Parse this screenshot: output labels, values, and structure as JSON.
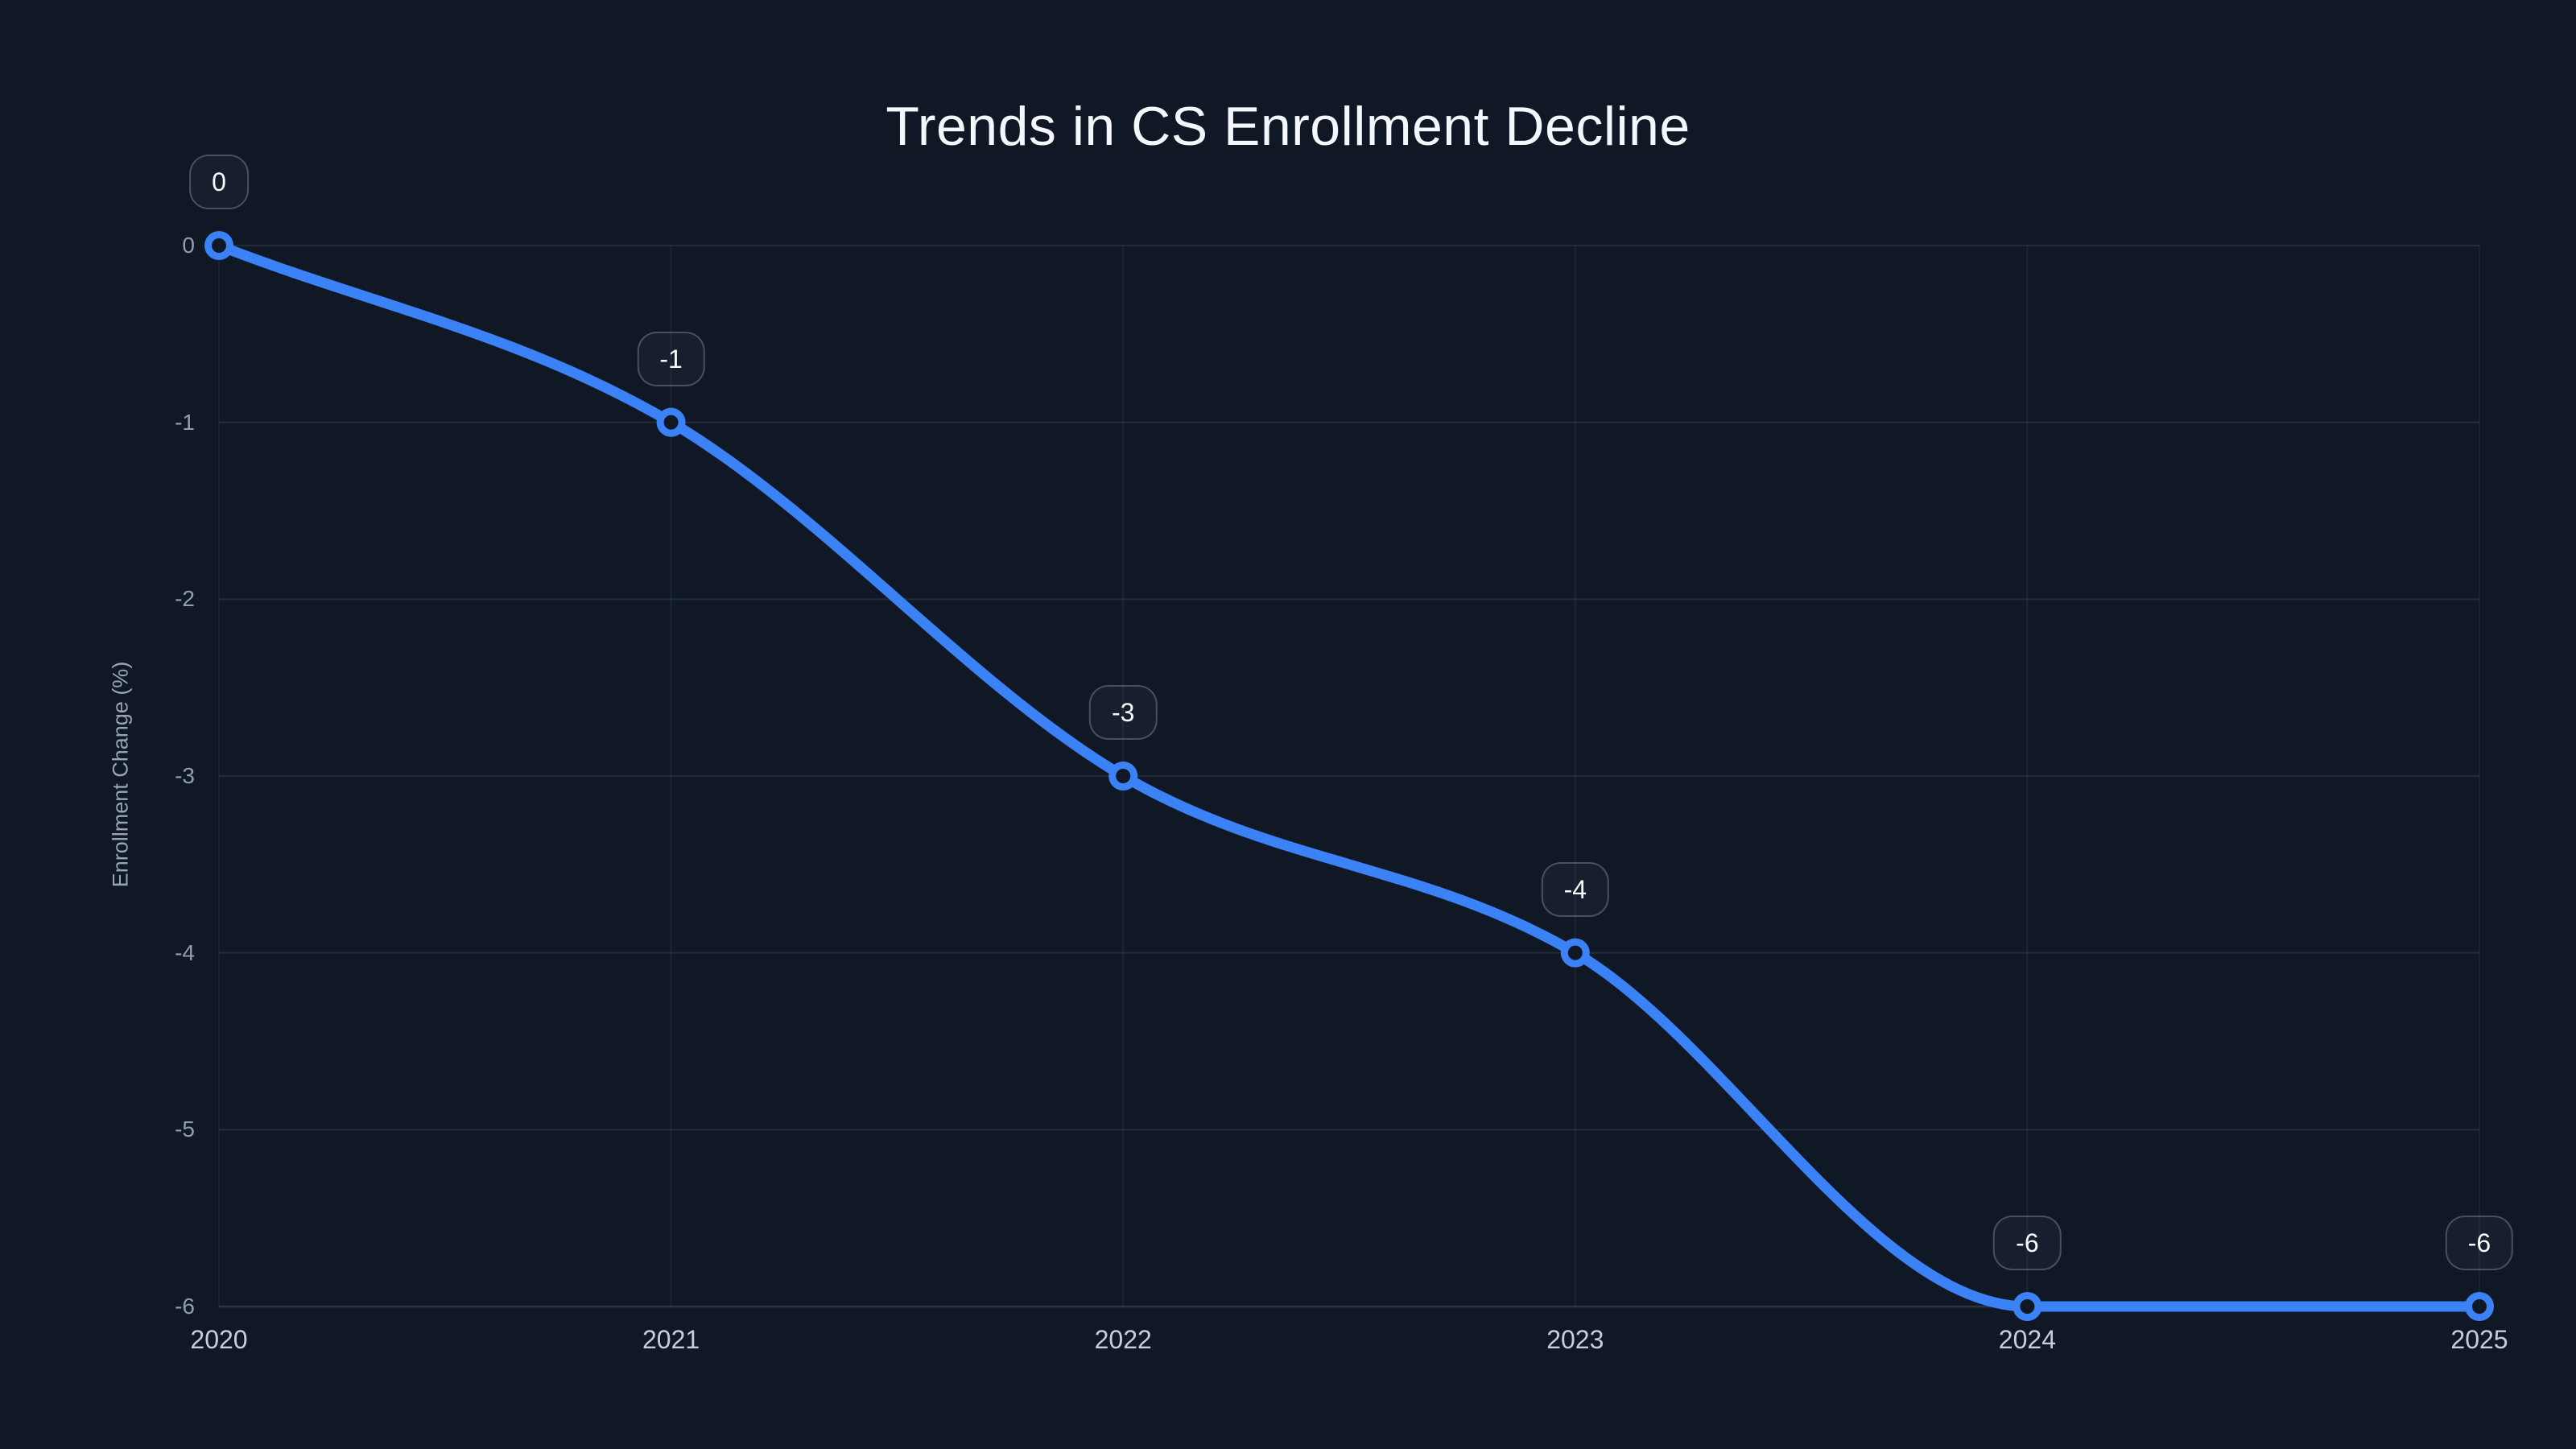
{
  "chart_data": {
    "type": "line",
    "title": "Trends in CS Enrollment Decline",
    "xlabel": "",
    "ylabel": "Enrollment Change (%)",
    "categories": [
      "2020",
      "2021",
      "2022",
      "2023",
      "2024",
      "2025"
    ],
    "series": [
      {
        "name": "Enrollment Change (%)",
        "values": [
          0,
          -1,
          -3,
          -4,
          -6,
          -6
        ]
      }
    ],
    "point_labels": [
      "0",
      "-1",
      "-3",
      "-4",
      "-6",
      "-6"
    ],
    "yticks": [
      0,
      -1,
      -2,
      -3,
      -4,
      -5,
      -6
    ],
    "ytick_labels": [
      "0",
      "-1",
      "-2",
      "-3",
      "-4",
      "-5",
      "-6"
    ],
    "ylim": [
      -6,
      0
    ],
    "grid": true,
    "legend": false,
    "smooth": true,
    "colors": {
      "background": "#101826",
      "line": "#3b82f6",
      "marker_stroke": "#3b82f6",
      "marker_fill": "#101826",
      "grid_horizontal": "rgba(148,163,184,0.14)",
      "grid_vertical": "rgba(148,163,184,0.09)",
      "axis_baseline": "rgba(148,163,184,0.20)",
      "title_text": "#f4f7fb",
      "x_tick_text": "#c6cedc",
      "y_tick_text": "#939db0",
      "badge_text": "#f8fafc",
      "badge_border": "rgba(148,163,184,0.38)"
    }
  }
}
